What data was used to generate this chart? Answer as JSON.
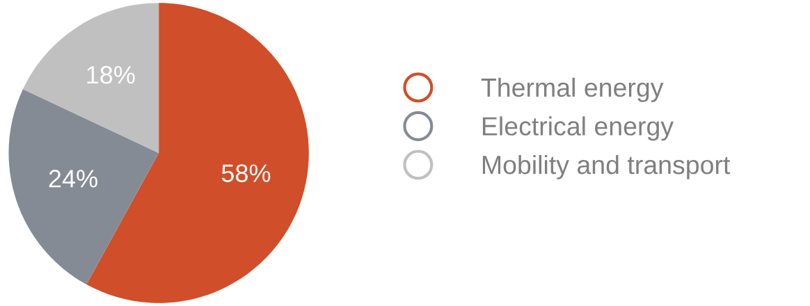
{
  "chart_data": {
    "type": "pie",
    "categories": [
      "Thermal energy",
      "Electrical energy",
      "Mobility and transport"
    ],
    "values": [
      58,
      24,
      18
    ],
    "colors": [
      "#d04e29",
      "#858b95",
      "#c0c0c0"
    ],
    "value_labels": [
      "58%",
      "24%",
      "18%"
    ],
    "legend": "right"
  }
}
